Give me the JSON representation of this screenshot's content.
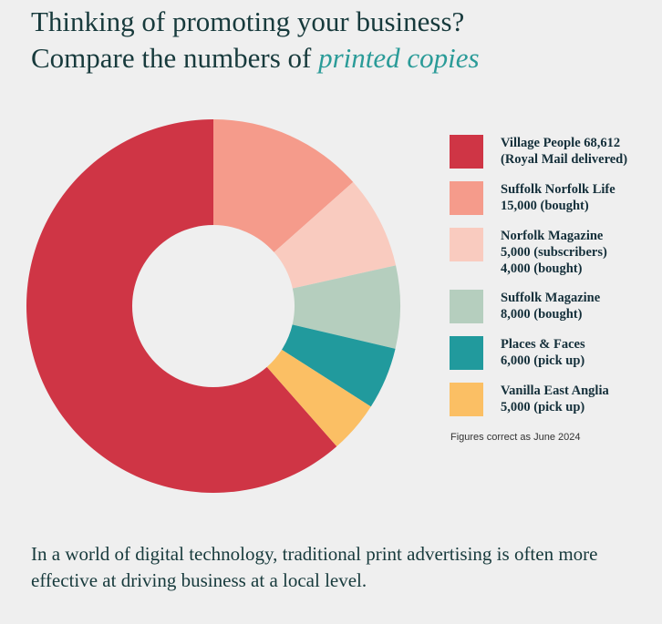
{
  "chart_data": {
    "type": "donut",
    "title_lines": [
      "Thinking of promoting your business?",
      "Compare the numbers of"
    ],
    "title_highlight": "printed copies",
    "series": [
      {
        "name": "Village People",
        "color": "#cf3545",
        "figures": [
          {
            "value": 68612,
            "label": "68,612",
            "note": "(Royal Mail delivered)"
          }
        ]
      },
      {
        "name": "Suffolk Norfolk Life",
        "color": "#f59b8b",
        "figures": [
          {
            "value": 15000,
            "label": "15,000",
            "note": "(bought)"
          }
        ]
      },
      {
        "name": "Norfolk Magazine",
        "color": "#f9cbbf",
        "figures": [
          {
            "value": 5000,
            "label": "5,000",
            "note": "(subscribers)"
          },
          {
            "value": 4000,
            "label": "4,000",
            "note": "(bought)"
          }
        ]
      },
      {
        "name": "Suffolk Magazine",
        "color": "#b5cebe",
        "figures": [
          {
            "value": 8000,
            "label": "8,000",
            "note": "(bought)"
          }
        ]
      },
      {
        "name": "Places & Faces",
        "color": "#219a9d",
        "figures": [
          {
            "value": 6000,
            "label": "6,000",
            "note": "(pick up)"
          }
        ]
      },
      {
        "name": "Vanilla East Anglia",
        "color": "#fbbf64",
        "figures": [
          {
            "value": 5000,
            "label": "5,000",
            "note": "(pick up)"
          }
        ]
      }
    ],
    "footnote": "Figures correct as June 2024",
    "caption": "In a world of digital technology, traditional print advertising is often more effective at driving business at a local level."
  }
}
